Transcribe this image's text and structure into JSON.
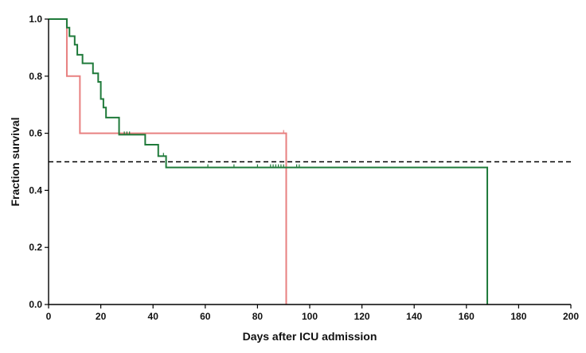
{
  "chart_data": {
    "type": "line",
    "xlabel": "Days after ICU admission",
    "ylabel": "Fraction survival",
    "xlim": [
      0,
      200
    ],
    "ylim": [
      0,
      1.0
    ],
    "x_ticks": [
      0,
      20,
      40,
      60,
      80,
      100,
      120,
      140,
      160,
      180,
      200
    ],
    "x_tick_labels": [
      "0",
      "20",
      "40",
      "60",
      "80",
      "100",
      "120",
      "140",
      "160",
      "180",
      "200"
    ],
    "y_ticks": [
      0,
      0.2,
      0.4,
      0.6,
      0.8,
      1.0
    ],
    "y_tick_labels": [
      "0.0",
      "0.2",
      "0.4",
      "0.6",
      "0.8",
      "1.0"
    ],
    "grid": false,
    "reference_line": {
      "y": 0.5,
      "style": "dashed",
      "color": "#000000"
    },
    "series": [
      {
        "color": "#e88080",
        "steps": [
          [
            0,
            1.0
          ],
          [
            7,
            0.8
          ],
          [
            12,
            0.6
          ],
          [
            91,
            0.0
          ]
        ],
        "censored": [
          [
            90,
            0.6
          ]
        ]
      },
      {
        "color": "#1f7a3a",
        "steps": [
          [
            0,
            1.0
          ],
          [
            7,
            0.97
          ],
          [
            8,
            0.94
          ],
          [
            10,
            0.91
          ],
          [
            11,
            0.875
          ],
          [
            13,
            0.845
          ],
          [
            17,
            0.81
          ],
          [
            19,
            0.78
          ],
          [
            20,
            0.72
          ],
          [
            21,
            0.69
          ],
          [
            22,
            0.655
          ],
          [
            27,
            0.595
          ],
          [
            37,
            0.56
          ],
          [
            42,
            0.52
          ],
          [
            45,
            0.48
          ],
          [
            168,
            0.0
          ]
        ],
        "censored": [
          [
            29,
            0.595
          ],
          [
            30,
            0.595
          ],
          [
            31,
            0.595
          ],
          [
            44,
            0.52
          ],
          [
            61,
            0.48
          ],
          [
            71,
            0.48
          ],
          [
            80,
            0.48
          ],
          [
            85,
            0.48
          ],
          [
            86,
            0.48
          ],
          [
            87,
            0.48
          ],
          [
            88,
            0.48
          ],
          [
            89,
            0.48
          ],
          [
            90,
            0.48
          ],
          [
            95,
            0.48
          ],
          [
            96,
            0.48
          ]
        ]
      }
    ]
  }
}
